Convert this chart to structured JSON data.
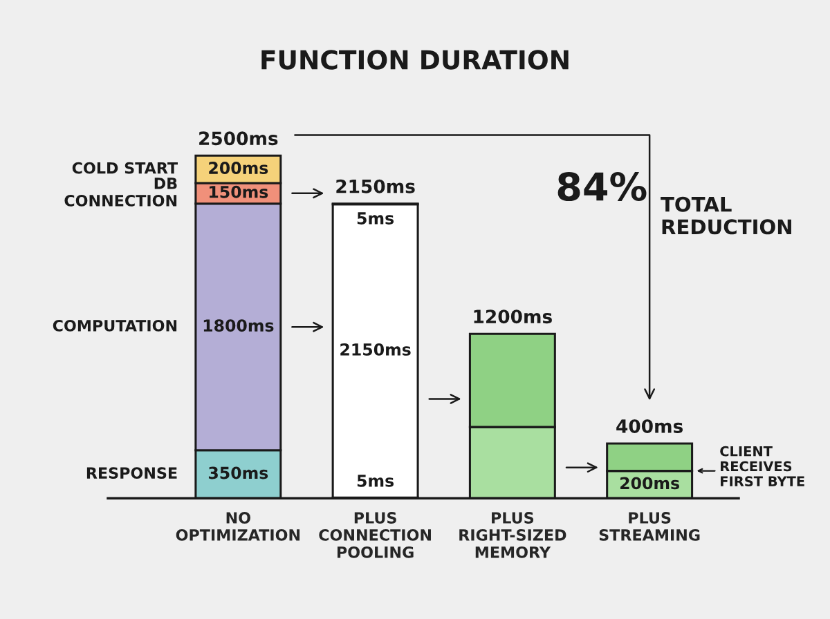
{
  "chart_data": {
    "type": "bar",
    "stacked": true,
    "title": "FUNCTION DURATION",
    "categories": [
      "NO\nOPTIMIZATION",
      "PLUS\nCONNECTION\nPOOLING",
      "PLUS\nRIGHT-SIZED\nMEMORY",
      "PLUS\nSTREAMING"
    ],
    "series": [
      {
        "name": "RESPONSE",
        "values": [
          350,
          5,
          520,
          200
        ],
        "colors": [
          "#8ecfcf",
          "#8ecfcf",
          "#a9dfa0",
          "#a9dfa0"
        ],
        "value_labels": [
          "350ms",
          "5ms",
          null,
          "200ms"
        ]
      },
      {
        "name": "COMPUTATION",
        "values": [
          1800,
          2140,
          680,
          200
        ],
        "colors": [
          "#b4aed6",
          "#ffffff",
          "#8fd184",
          "#8fd184"
        ],
        "value_labels": [
          "1800ms",
          null,
          null,
          null
        ]
      },
      {
        "name": "DB\nCONNECTION",
        "values": [
          150,
          5,
          null,
          null
        ],
        "colors": [
          "#f0907a",
          "#f0907a",
          null,
          null
        ],
        "value_labels": [
          "150ms",
          "5ms",
          null,
          null
        ]
      },
      {
        "name": "COLD START",
        "values": [
          200,
          null,
          null,
          null
        ],
        "colors": [
          "#f5d27a",
          null,
          null,
          null
        ],
        "value_labels": [
          "200ms",
          null,
          null,
          null
        ]
      }
    ],
    "totals": [
      "2500ms",
      "2150ms",
      "1200ms",
      "400ms"
    ],
    "annotations": [
      "84%",
      "TOTAL\nREDUCTION",
      "CLIENT\nRECEIVES\nFIRST BYTE",
      "2150ms"
    ],
    "grid": false
  }
}
